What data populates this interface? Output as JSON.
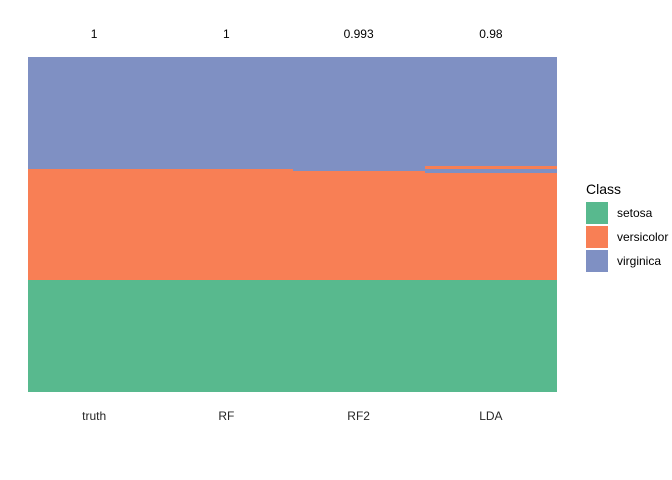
{
  "chart_data": {
    "type": "bar",
    "subtype": "stacked-column-per-observation-class-map",
    "title": "",
    "xlabel": "",
    "ylabel": "",
    "categories": [
      "truth",
      "RF",
      "RF2",
      "LDA"
    ],
    "accuracy_labels": [
      "1",
      "1",
      "0.993",
      "0.98"
    ],
    "classes": [
      "setosa",
      "versicolor",
      "virginica"
    ],
    "total_per_column": 150,
    "colors": {
      "setosa": "#58B98E",
      "versicolor": "#F87F55",
      "virginica": "#7F90C3"
    },
    "columns": [
      {
        "name": "truth",
        "accuracy": "1",
        "segments": [
          {
            "class": "virginica",
            "count": 50
          },
          {
            "class": "versicolor",
            "count": 50
          },
          {
            "class": "setosa",
            "count": 50
          }
        ]
      },
      {
        "name": "RF",
        "accuracy": "1",
        "segments": [
          {
            "class": "virginica",
            "count": 50
          },
          {
            "class": "versicolor",
            "count": 50
          },
          {
            "class": "setosa",
            "count": 50
          }
        ]
      },
      {
        "name": "RF2",
        "accuracy": "0.993",
        "segments": [
          {
            "class": "virginica",
            "count": 51
          },
          {
            "class": "versicolor",
            "count": 49
          },
          {
            "class": "setosa",
            "count": 50
          }
        ]
      },
      {
        "name": "LDA",
        "accuracy": "0.98",
        "segments": [
          {
            "class": "virginica",
            "count": 49
          },
          {
            "class": "versicolor",
            "count": 1
          },
          {
            "class": "virginica",
            "count": 2
          },
          {
            "class": "versicolor",
            "count": 48
          },
          {
            "class": "setosa",
            "count": 50
          }
        ]
      }
    ],
    "legend": {
      "title": "Class",
      "entries": [
        "setosa",
        "versicolor",
        "virginica"
      ],
      "position": "right"
    },
    "layout": {
      "grid": false,
      "axis_lines": false,
      "background": "#ffffff"
    }
  }
}
